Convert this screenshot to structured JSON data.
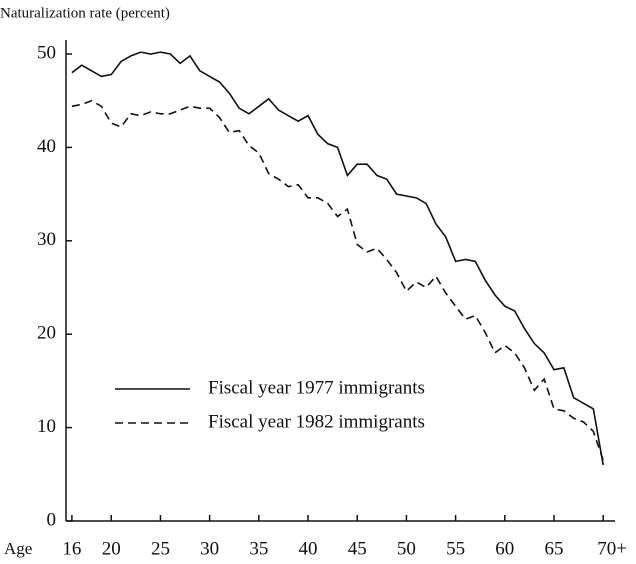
{
  "chart_data": {
    "type": "line",
    "y_label": "Naturalization rate (percent)",
    "x_label": "Age",
    "x": [
      16,
      17,
      18,
      19,
      20,
      21,
      22,
      23,
      24,
      25,
      26,
      27,
      28,
      29,
      30,
      31,
      32,
      33,
      34,
      35,
      36,
      37,
      38,
      39,
      40,
      41,
      42,
      43,
      44,
      45,
      46,
      47,
      48,
      49,
      50,
      51,
      52,
      53,
      54,
      55,
      56,
      57,
      58,
      59,
      60,
      61,
      62,
      63,
      64,
      65,
      66,
      67,
      68,
      69,
      70
    ],
    "series": [
      {
        "name": "Fiscal year 1977 immigrants",
        "color": "#111111",
        "dash": "solid",
        "values": [
          48,
          48.8,
          48.2,
          47.6,
          47.8,
          49.2,
          49.8,
          50.2,
          50,
          50.2,
          50,
          49,
          49.8,
          48.2,
          47.6,
          47,
          45.8,
          44.2,
          43.6,
          44.4,
          45.2,
          44,
          43.4,
          42.8,
          43.4,
          41.4,
          40.4,
          40,
          37,
          38.2,
          38.2,
          37,
          36.6,
          35,
          34.8,
          34.6,
          34,
          31.8,
          30.4,
          27.8,
          28,
          27.8,
          25.8,
          24.2,
          23,
          22.5,
          20.6,
          19,
          18,
          16.2,
          16.4,
          13.2,
          12.6,
          12,
          6
        ]
      },
      {
        "name": "Fiscal year 1982 immigrants",
        "color": "#111111",
        "dash": "dashed",
        "values": [
          44.4,
          44.6,
          45,
          44.4,
          42.6,
          42.2,
          43.6,
          43.4,
          43.8,
          43.6,
          43.6,
          44,
          44.4,
          44.2,
          44.2,
          43.2,
          41.6,
          41.8,
          40.2,
          39.4,
          37.2,
          36.6,
          35.8,
          36,
          34.6,
          34.6,
          34,
          32.6,
          33.4,
          29.6,
          28.8,
          29.2,
          28,
          26.6,
          24.6,
          25.6,
          25,
          26.2,
          24.4,
          23,
          21.6,
          22,
          20.2,
          18,
          18.8,
          18,
          16.4,
          14,
          15.2,
          12,
          11.8,
          11,
          10.6,
          9.6,
          6.5
        ]
      }
    ],
    "xlim": [
      15.4,
      71.2
    ],
    "xticks": [
      16,
      20,
      25,
      30,
      35,
      40,
      45,
      50,
      55,
      60,
      65,
      {
        "value": 70,
        "label": "70+"
      }
    ],
    "ylim": [
      0,
      51.5
    ],
    "yticks": [
      0,
      10,
      20,
      30,
      40,
      50
    ],
    "legend": "lower left"
  }
}
